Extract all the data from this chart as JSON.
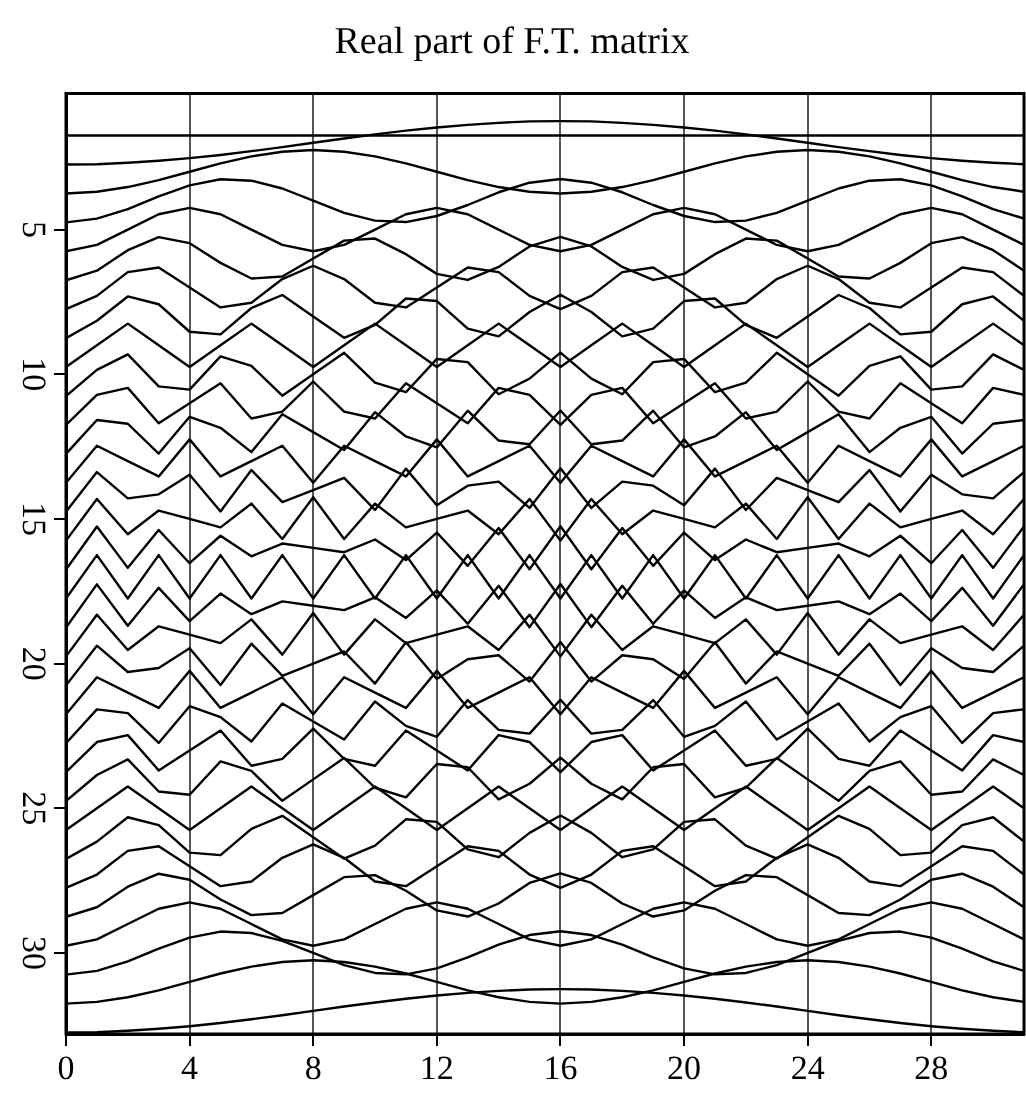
{
  "chart_data": {
    "type": "line",
    "title": "Real part of F.T. matrix",
    "x": [
      0,
      1,
      2,
      3,
      4,
      5,
      6,
      7,
      8,
      9,
      10,
      11,
      12,
      13,
      14,
      15,
      16,
      17,
      18,
      19,
      20,
      21,
      22,
      23,
      24,
      25,
      26,
      27,
      28,
      29,
      30,
      31
    ],
    "xlim": [
      0,
      31
    ],
    "xticks": [
      0,
      4,
      8,
      12,
      16,
      20,
      24,
      28
    ],
    "ylim": [
      32.8,
      0.3
    ],
    "yticks": [
      5,
      10,
      15,
      20,
      25,
      30
    ],
    "grid": "x",
    "legend": false,
    "series": [
      {
        "color": "#000000",
        "values": [
          1.75,
          1.75,
          1.75,
          1.75,
          1.75,
          1.75,
          1.75,
          1.75,
          1.75,
          1.75,
          1.75,
          1.75,
          1.75,
          1.75,
          1.75,
          1.75,
          1.75,
          1.75,
          1.75,
          1.75,
          1.75,
          1.75,
          1.75,
          1.75,
          1.75,
          1.75,
          1.75,
          1.75,
          1.75,
          1.75,
          1.75,
          1.75
        ]
      },
      {
        "color": "#000000",
        "values": [
          2.75,
          2.74,
          2.69,
          2.62,
          2.53,
          2.42,
          2.29,
          2.15,
          2,
          1.85,
          1.71,
          1.58,
          1.47,
          1.38,
          1.31,
          1.26,
          1.25,
          1.26,
          1.31,
          1.38,
          1.47,
          1.58,
          1.71,
          1.85,
          2,
          2.15,
          2.29,
          2.42,
          2.53,
          2.62,
          2.69,
          2.74
        ]
      },
      {
        "color": "#000000",
        "values": [
          3.75,
          3.69,
          3.53,
          3.29,
          3,
          2.71,
          2.47,
          2.31,
          2.25,
          2.31,
          2.47,
          2.71,
          3,
          3.29,
          3.53,
          3.69,
          3.75,
          3.69,
          3.53,
          3.29,
          3,
          2.71,
          2.47,
          2.31,
          2.25,
          2.31,
          2.47,
          2.71,
          3,
          3.29,
          3.53,
          3.69
        ]
      },
      {
        "color": "#000000",
        "values": [
          4.75,
          4.62,
          4.29,
          3.85,
          3.47,
          3.26,
          3.31,
          3.58,
          4,
          4.42,
          4.69,
          4.74,
          4.53,
          4.15,
          3.71,
          3.38,
          3.25,
          3.38,
          3.71,
          4.15,
          4.53,
          4.74,
          4.69,
          4.42,
          4,
          3.58,
          3.31,
          3.26,
          3.47,
          3.85,
          4.29,
          4.62
        ]
      },
      {
        "color": "#000000",
        "values": [
          5.75,
          5.53,
          5,
          4.47,
          4.25,
          4.47,
          5,
          5.53,
          5.75,
          5.53,
          5,
          4.47,
          4.25,
          4.47,
          5,
          5.53,
          5.75,
          5.53,
          5,
          4.47,
          4.25,
          4.47,
          5,
          5.53,
          5.75,
          5.53,
          5,
          4.47,
          4.25,
          4.47,
          5,
          5.53
        ]
      },
      {
        "color": "#000000",
        "values": [
          6.75,
          6.42,
          5.71,
          5.26,
          5.47,
          6.15,
          6.69,
          6.62,
          6,
          5.38,
          5.31,
          5.85,
          6.53,
          6.74,
          6.29,
          5.58,
          5.25,
          5.58,
          6.29,
          6.74,
          6.53,
          5.85,
          5.31,
          5.38,
          6,
          6.62,
          6.69,
          6.15,
          5.47,
          5.26,
          5.71,
          6.42
        ]
      },
      {
        "color": "#000000",
        "values": [
          7.75,
          7.29,
          6.47,
          6.31,
          7,
          7.69,
          7.53,
          6.71,
          6.25,
          6.71,
          7.53,
          7.69,
          7,
          6.31,
          6.47,
          7.29,
          7.75,
          7.29,
          6.47,
          6.31,
          7,
          7.69,
          7.53,
          6.71,
          6.25,
          6.71,
          7.53,
          7.69,
          7,
          6.31,
          6.47,
          7.29
        ]
      },
      {
        "color": "#000000",
        "values": [
          8.75,
          8.15,
          7.31,
          7.58,
          8.53,
          8.62,
          7.71,
          7.26,
          8,
          8.74,
          8.29,
          7.38,
          7.47,
          8.42,
          8.69,
          7.85,
          7.25,
          7.85,
          8.69,
          8.42,
          7.47,
          7.38,
          8.29,
          8.74,
          8,
          7.26,
          7.71,
          8.62,
          8.53,
          7.58,
          7.31,
          8.15
        ]
      },
      {
        "color": "#000000",
        "values": [
          9.75,
          9,
          8.25,
          9,
          9.75,
          9,
          8.25,
          9,
          9.75,
          9,
          8.25,
          9,
          9.75,
          9,
          8.25,
          9,
          9.75,
          9,
          8.25,
          9,
          9.75,
          9,
          8.25,
          9,
          9.75,
          9,
          8.25,
          9,
          9.75,
          9,
          8.25,
          9
        ]
      },
      {
        "color": "#000000",
        "values": [
          10.75,
          9.85,
          9.31,
          10.42,
          10.53,
          9.38,
          9.71,
          10.74,
          10,
          9.26,
          10.29,
          10.62,
          9.47,
          9.58,
          10.69,
          10.15,
          9.25,
          10.15,
          10.69,
          9.58,
          9.47,
          10.62,
          10.29,
          9.26,
          10,
          10.74,
          9.71,
          9.38,
          10.53,
          10.42,
          9.31,
          9.85
        ]
      },
      {
        "color": "#000000",
        "values": [
          11.75,
          10.71,
          10.47,
          11.69,
          11,
          10.31,
          11.53,
          11.29,
          10.25,
          11.29,
          11.53,
          10.31,
          11,
          11.69,
          10.47,
          10.71,
          11.75,
          10.71,
          10.47,
          11.69,
          11,
          10.31,
          11.53,
          11.29,
          10.25,
          11.29,
          11.53,
          10.31,
          11,
          11.69,
          10.47,
          10.71
        ]
      },
      {
        "color": "#000000",
        "values": [
          12.75,
          11.58,
          11.71,
          12.74,
          11.47,
          11.85,
          12.69,
          11.38,
          12,
          12.62,
          11.31,
          12.15,
          12.53,
          11.26,
          12.29,
          12.42,
          11.25,
          12.42,
          12.29,
          11.26,
          12.53,
          12.15,
          11.31,
          12.62,
          12,
          11.38,
          12.69,
          11.85,
          11.47,
          12.74,
          11.71,
          11.58
        ]
      },
      {
        "color": "#000000",
        "values": [
          13.75,
          12.47,
          13,
          13.53,
          12.25,
          13.53,
          13,
          12.47,
          13.75,
          12.47,
          13,
          13.53,
          12.25,
          13.53,
          13,
          12.47,
          13.75,
          12.47,
          13,
          13.53,
          12.25,
          13.53,
          13,
          12.47,
          13.75,
          12.47,
          13,
          13.53,
          12.25,
          13.53,
          13,
          12.47
        ]
      },
      {
        "color": "#000000",
        "values": [
          14.75,
          13.38,
          14.29,
          14.15,
          13.47,
          14.74,
          13.31,
          14.42,
          14,
          13.58,
          14.69,
          13.26,
          14.53,
          13.85,
          13.71,
          14.62,
          13.25,
          14.62,
          13.71,
          13.85,
          14.53,
          13.26,
          14.69,
          13.58,
          14,
          14.42,
          13.31,
          14.74,
          13.47,
          14.15,
          14.29,
          13.38
        ]
      },
      {
        "color": "#000000",
        "values": [
          15.75,
          14.31,
          15.53,
          14.71,
          15,
          15.29,
          14.47,
          15.69,
          14.25,
          15.69,
          14.47,
          15.29,
          15,
          14.71,
          15.53,
          14.31,
          15.75,
          14.31,
          15.53,
          14.71,
          15,
          15.29,
          14.47,
          15.69,
          14.25,
          15.69,
          14.47,
          15.29,
          15,
          14.71,
          15.53,
          14.31
        ]
      },
      {
        "color": "#000000",
        "values": [
          16.75,
          15.26,
          16.69,
          15.38,
          16.53,
          15.58,
          16.29,
          15.85,
          16,
          16.15,
          15.71,
          16.42,
          15.47,
          16.62,
          15.31,
          16.74,
          15.25,
          16.74,
          15.31,
          16.62,
          15.47,
          16.42,
          15.71,
          16.15,
          16,
          15.85,
          16.29,
          15.58,
          16.53,
          15.38,
          16.69,
          15.26
        ]
      },
      {
        "color": "#000000",
        "values": [
          17.75,
          16.25,
          17.75,
          16.25,
          17.75,
          16.25,
          17.75,
          16.25,
          17.75,
          16.25,
          17.75,
          16.25,
          17.75,
          16.25,
          17.75,
          16.25,
          17.75,
          16.25,
          17.75,
          16.25,
          17.75,
          16.25,
          17.75,
          16.25,
          17.75,
          16.25,
          17.75,
          16.25,
          17.75,
          16.25,
          17.75,
          16.25
        ]
      },
      {
        "color": "#000000",
        "values": [
          18.75,
          17.26,
          18.69,
          17.38,
          18.53,
          17.58,
          18.29,
          17.85,
          18,
          18.15,
          17.71,
          18.42,
          17.47,
          18.62,
          17.31,
          18.74,
          17.25,
          18.74,
          17.31,
          18.62,
          17.47,
          18.42,
          17.71,
          18.15,
          18,
          17.85,
          18.29,
          17.58,
          18.53,
          17.38,
          18.69,
          17.26
        ]
      },
      {
        "color": "#000000",
        "values": [
          19.75,
          18.31,
          19.53,
          18.71,
          19,
          19.29,
          18.47,
          19.69,
          18.25,
          19.69,
          18.47,
          19.29,
          19,
          18.71,
          19.53,
          18.31,
          19.75,
          18.31,
          19.53,
          18.71,
          19,
          19.29,
          18.47,
          19.69,
          18.25,
          19.69,
          18.47,
          19.29,
          19,
          18.71,
          19.53,
          18.31
        ]
      },
      {
        "color": "#000000",
        "values": [
          20.75,
          19.38,
          20.29,
          20.15,
          19.47,
          20.74,
          19.31,
          20.42,
          20,
          19.58,
          20.69,
          19.26,
          20.53,
          19.85,
          19.71,
          20.62,
          19.25,
          20.62,
          19.71,
          19.85,
          20.53,
          19.26,
          20.69,
          19.58,
          20,
          20.42,
          19.31,
          20.74,
          19.47,
          20.15,
          20.29,
          19.38
        ]
      },
      {
        "color": "#000000",
        "values": [
          21.75,
          20.47,
          21,
          21.53,
          20.25,
          21.53,
          21,
          20.47,
          21.75,
          20.47,
          21,
          21.53,
          20.25,
          21.53,
          21,
          20.47,
          21.75,
          20.47,
          21,
          21.53,
          20.25,
          21.53,
          21,
          20.47,
          21.75,
          20.47,
          21,
          21.53,
          20.25,
          21.53,
          21,
          20.47
        ]
      },
      {
        "color": "#000000",
        "values": [
          22.75,
          21.58,
          21.71,
          22.74,
          21.47,
          21.85,
          22.69,
          21.38,
          22,
          22.62,
          21.31,
          22.15,
          22.53,
          21.26,
          22.29,
          22.42,
          21.25,
          22.42,
          22.29,
          21.26,
          22.53,
          22.15,
          21.31,
          22.62,
          22,
          21.38,
          22.69,
          21.85,
          21.47,
          22.74,
          21.71,
          21.58
        ]
      },
      {
        "color": "#000000",
        "values": [
          23.75,
          22.71,
          22.47,
          23.69,
          23,
          22.31,
          23.53,
          23.29,
          22.25,
          23.29,
          23.53,
          22.31,
          23,
          23.69,
          22.47,
          22.71,
          23.75,
          22.71,
          22.47,
          23.69,
          23,
          22.31,
          23.53,
          23.29,
          22.25,
          23.29,
          23.53,
          22.31,
          23,
          23.69,
          22.47,
          22.71
        ]
      },
      {
        "color": "#000000",
        "values": [
          24.75,
          23.85,
          23.31,
          24.42,
          24.53,
          23.38,
          23.71,
          24.74,
          24,
          23.26,
          24.29,
          24.62,
          23.47,
          23.58,
          24.69,
          24.15,
          23.25,
          24.15,
          24.69,
          23.58,
          23.47,
          24.62,
          24.29,
          23.26,
          24,
          24.74,
          23.71,
          23.38,
          24.53,
          24.42,
          23.31,
          23.85
        ]
      },
      {
        "color": "#000000",
        "values": [
          25.75,
          25,
          24.25,
          25,
          25.75,
          25,
          24.25,
          25,
          25.75,
          25,
          24.25,
          25,
          25.75,
          25,
          24.25,
          25,
          25.75,
          25,
          24.25,
          25,
          25.75,
          25,
          24.25,
          25,
          25.75,
          25,
          24.25,
          25,
          25.75,
          25,
          24.25,
          25
        ]
      },
      {
        "color": "#000000",
        "values": [
          26.75,
          26.15,
          25.31,
          25.58,
          26.53,
          26.62,
          25.71,
          25.26,
          26,
          26.74,
          26.29,
          25.38,
          25.47,
          26.42,
          26.69,
          25.85,
          25.25,
          25.85,
          26.69,
          26.42,
          25.47,
          25.38,
          26.29,
          26.74,
          26,
          25.26,
          25.71,
          26.62,
          26.53,
          25.58,
          25.31,
          26.15
        ]
      },
      {
        "color": "#000000",
        "values": [
          27.75,
          27.29,
          26.47,
          26.31,
          27,
          27.69,
          27.53,
          26.71,
          26.25,
          26.71,
          27.53,
          27.69,
          27,
          26.31,
          26.47,
          27.29,
          27.75,
          27.29,
          26.47,
          26.31,
          27,
          27.69,
          27.53,
          26.71,
          26.25,
          26.71,
          27.53,
          27.69,
          27,
          26.31,
          26.47,
          27.29
        ]
      },
      {
        "color": "#000000",
        "values": [
          28.75,
          28.42,
          27.71,
          27.26,
          27.47,
          28.15,
          28.69,
          28.62,
          28,
          27.38,
          27.31,
          27.85,
          28.53,
          28.74,
          28.29,
          27.58,
          27.25,
          27.58,
          28.29,
          28.74,
          28.53,
          27.85,
          27.31,
          27.38,
          28,
          28.62,
          28.69,
          28.15,
          27.47,
          27.26,
          27.71,
          28.42
        ]
      },
      {
        "color": "#000000",
        "values": [
          29.75,
          29.53,
          29,
          28.47,
          28.25,
          28.47,
          29,
          29.53,
          29.75,
          29.53,
          29,
          28.47,
          28.25,
          28.47,
          29,
          29.53,
          29.75,
          29.53,
          29,
          28.47,
          28.25,
          28.47,
          29,
          29.53,
          29.75,
          29.53,
          29,
          28.47,
          28.25,
          28.47,
          29,
          29.53
        ]
      },
      {
        "color": "#000000",
        "values": [
          30.75,
          30.62,
          30.29,
          29.85,
          29.47,
          29.26,
          29.31,
          29.58,
          30,
          30.42,
          30.69,
          30.74,
          30.53,
          30.15,
          29.71,
          29.38,
          29.25,
          29.38,
          29.71,
          30.15,
          30.53,
          30.74,
          30.69,
          30.42,
          30,
          29.58,
          29.31,
          29.26,
          29.47,
          29.85,
          30.29,
          30.62
        ]
      },
      {
        "color": "#000000",
        "values": [
          31.75,
          31.69,
          31.53,
          31.29,
          31,
          30.71,
          30.47,
          30.31,
          30.25,
          30.31,
          30.47,
          30.71,
          31,
          31.29,
          31.53,
          31.69,
          31.75,
          31.69,
          31.53,
          31.29,
          31,
          30.71,
          30.47,
          30.31,
          30.25,
          30.31,
          30.47,
          30.71,
          31,
          31.29,
          31.53,
          31.69
        ]
      },
      {
        "color": "#000000",
        "values": [
          32.75,
          32.74,
          32.69,
          32.62,
          32.53,
          32.42,
          32.29,
          32.15,
          32,
          31.85,
          31.71,
          31.58,
          31.47,
          31.38,
          31.31,
          31.26,
          31.25,
          31.26,
          31.31,
          31.38,
          31.47,
          31.58,
          31.71,
          31.85,
          32,
          32.15,
          32.29,
          32.42,
          32.53,
          32.62,
          32.69,
          32.74
        ]
      }
    ]
  }
}
